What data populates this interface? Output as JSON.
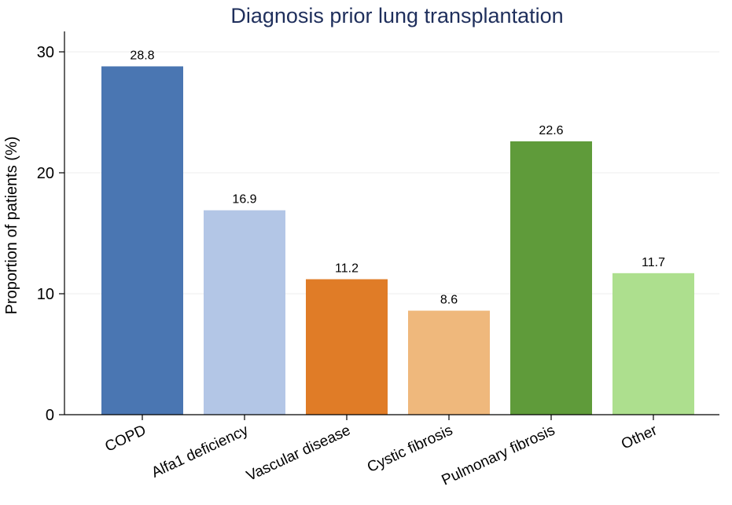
{
  "chart_data": {
    "type": "bar",
    "title": "Diagnosis prior lung transplantation",
    "xlabel": "",
    "ylabel": "Proportion of patients (%)",
    "categories": [
      "COPD",
      "Alfa1 deficiency",
      "Vascular disease",
      "Cystic fibrosis",
      "Pulmonary fibrosis",
      "Other"
    ],
    "values": [
      28.8,
      16.9,
      11.2,
      8.6,
      22.6,
      11.7
    ],
    "data_labels": [
      "28.8",
      "16.9",
      "11.2",
      "8.6",
      "22.6",
      "11.7"
    ],
    "colors": [
      "#4a76b2",
      "#b3c6e6",
      "#e07c27",
      "#efb87c",
      "#5f9b3a",
      "#addf8e"
    ],
    "ylim": [
      0,
      32
    ],
    "yticks": [
      0,
      10,
      20,
      30
    ],
    "grid": true,
    "legend": "none"
  }
}
